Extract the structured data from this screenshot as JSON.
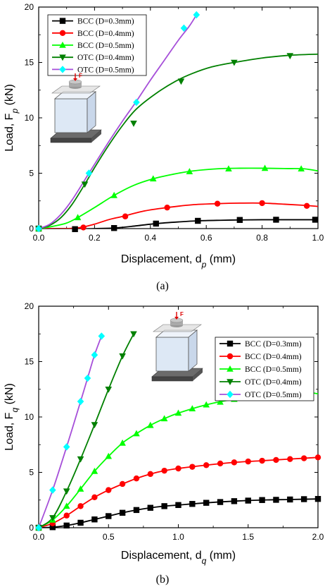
{
  "chart_data": [
    {
      "type": "line",
      "caption": "(a)",
      "xlabel": "Displacement, d",
      "xlabel_sub": "p",
      "xlabel_unit": " (mm)",
      "ylabel": "Load, F",
      "ylabel_sub": "p",
      "ylabel_unit": " (kN)",
      "xlim": [
        0,
        1.0
      ],
      "ylim": [
        0,
        20
      ],
      "xticks": [
        "0.0",
        "0.2",
        "0.4",
        "0.6",
        "0.8",
        "1.0"
      ],
      "yticks": [
        "0",
        "5",
        "10",
        "15",
        "20"
      ],
      "legend_position": "top-left",
      "inset_label": "F",
      "series": [
        {
          "name": "BCC (D=0.3mm)",
          "color": "#000000",
          "marker": "square",
          "x": [
            0,
            0.1,
            0.13,
            0.2,
            0.27,
            0.35,
            0.42,
            0.5,
            0.57,
            0.65,
            0.72,
            0.8,
            0.9,
            1.0
          ],
          "y": [
            0,
            0,
            -0.05,
            0,
            0.05,
            0.25,
            0.45,
            0.6,
            0.7,
            0.75,
            0.78,
            0.8,
            0.8,
            0.8
          ],
          "markers_x": [
            0.0,
            0.13,
            0.27,
            0.42,
            0.57,
            0.72,
            0.85,
            0.99
          ],
          "markers_y": [
            0,
            -0.05,
            0.05,
            0.45,
            0.7,
            0.78,
            0.8,
            0.8
          ]
        },
        {
          "name": "BCC (D=0.4mm)",
          "color": "#ff0000",
          "marker": "circle",
          "x": [
            0,
            0.1,
            0.15,
            0.2,
            0.25,
            0.3,
            0.38,
            0.46,
            0.55,
            0.64,
            0.72,
            0.8,
            0.88,
            0.95,
            1.0
          ],
          "y": [
            0,
            0,
            0.1,
            0.4,
            0.8,
            1.1,
            1.6,
            1.9,
            2.15,
            2.25,
            2.3,
            2.3,
            2.2,
            2.1,
            2.0
          ],
          "markers_x": [
            0.0,
            0.16,
            0.31,
            0.46,
            0.64,
            0.8,
            0.96
          ],
          "markers_y": [
            0,
            0.1,
            1.1,
            1.9,
            2.25,
            2.3,
            2.05
          ]
        },
        {
          "name": "BCC (D=0.5mm)",
          "color": "#00ff00",
          "marker": "triangle",
          "x": [
            0,
            0.05,
            0.1,
            0.14,
            0.2,
            0.27,
            0.34,
            0.41,
            0.48,
            0.55,
            0.64,
            0.72,
            0.8,
            0.88,
            0.95,
            1.0
          ],
          "y": [
            0,
            0.2,
            0.5,
            1.0,
            1.9,
            3.0,
            3.9,
            4.5,
            4.9,
            5.2,
            5.4,
            5.45,
            5.45,
            5.42,
            5.4,
            5.2
          ],
          "markers_x": [
            0.0,
            0.14,
            0.27,
            0.41,
            0.54,
            0.68,
            0.81,
            0.94
          ],
          "markers_y": [
            0,
            1.0,
            3.0,
            4.5,
            5.15,
            5.4,
            5.45,
            5.4
          ]
        },
        {
          "name": "OTC (D=0.4mm)",
          "color": "#008000",
          "marker": "triangle-down",
          "x": [
            0,
            0.04,
            0.08,
            0.12,
            0.165,
            0.2,
            0.25,
            0.3,
            0.35,
            0.42,
            0.49,
            0.55,
            0.62,
            0.7,
            0.8,
            0.9,
            1.0
          ],
          "y": [
            0,
            0.3,
            1.0,
            2.2,
            4.0,
            5.5,
            7.5,
            9.3,
            10.8,
            12.2,
            13.3,
            14.0,
            14.6,
            15.0,
            15.4,
            15.65,
            15.75
          ],
          "markers_x": [
            0.0,
            0.165,
            0.34,
            0.51,
            0.7,
            0.9
          ],
          "markers_y": [
            0,
            4.0,
            9.5,
            13.3,
            15.0,
            15.6
          ]
        },
        {
          "name": "OTC (D=0.5mm)",
          "color": "#00ffff",
          "line_color": "#a64fd9",
          "marker": "diamond",
          "x": [
            0,
            0.04,
            0.08,
            0.12,
            0.18,
            0.25,
            0.3,
            0.35,
            0.4,
            0.45,
            0.5,
            0.54,
            0.565
          ],
          "y": [
            0,
            0.4,
            1.3,
            2.6,
            5.0,
            7.8,
            9.7,
            11.5,
            13.4,
            15.2,
            17.0,
            18.3,
            19.3
          ],
          "markers_x": [
            0.0,
            0.18,
            0.35,
            0.52,
            0.565
          ],
          "markers_y": [
            0,
            5.0,
            11.4,
            18.1,
            19.3
          ]
        }
      ]
    },
    {
      "type": "line",
      "caption": "(b)",
      "xlabel": "Displacement, d",
      "xlabel_sub": "q",
      "xlabel_unit": " (mm)",
      "ylabel": "Load, F",
      "ylabel_sub": "q",
      "ylabel_unit": " (kN)",
      "xlim": [
        0,
        2.0
      ],
      "ylim": [
        0,
        20
      ],
      "xticks": [
        "0.0",
        "0.5",
        "1.0",
        "1.5",
        "2.0"
      ],
      "yticks": [
        "0",
        "5",
        "10",
        "15",
        "20"
      ],
      "legend_position": "top-right",
      "inset_label": "F",
      "series": [
        {
          "name": "BCC (D=0.3mm)",
          "color": "#000000",
          "marker": "square",
          "x": [
            0,
            0.1,
            0.2,
            0.3,
            0.4,
            0.5,
            0.6,
            0.7,
            0.8,
            0.9,
            1.0,
            1.2,
            1.4,
            1.6,
            1.8,
            2.0
          ],
          "y": [
            0,
            0.05,
            0.2,
            0.45,
            0.75,
            1.05,
            1.35,
            1.6,
            1.8,
            1.95,
            2.05,
            2.25,
            2.4,
            2.5,
            2.55,
            2.6
          ],
          "markers_x": [
            0.0,
            0.1,
            0.2,
            0.3,
            0.4,
            0.5,
            0.6,
            0.7,
            0.8,
            0.9,
            1.0,
            1.1,
            1.2,
            1.3,
            1.4,
            1.5,
            1.6,
            1.7,
            1.8,
            1.9,
            2.0
          ],
          "markers_y": [
            0,
            0.05,
            0.2,
            0.45,
            0.75,
            1.05,
            1.35,
            1.6,
            1.8,
            1.95,
            2.05,
            2.15,
            2.25,
            2.32,
            2.4,
            2.45,
            2.5,
            2.52,
            2.55,
            2.58,
            2.6
          ]
        },
        {
          "name": "BCC (D=0.4mm)",
          "color": "#ff0000",
          "marker": "circle",
          "x": [
            0,
            0.1,
            0.2,
            0.3,
            0.4,
            0.5,
            0.6,
            0.7,
            0.8,
            0.9,
            1.0,
            1.2,
            1.4,
            1.6,
            1.8,
            2.0
          ],
          "y": [
            0,
            0.4,
            1.1,
            1.95,
            2.75,
            3.4,
            3.95,
            4.45,
            4.85,
            5.15,
            5.35,
            5.65,
            5.9,
            6.05,
            6.2,
            6.35
          ],
          "markers_x": [
            0.0,
            0.1,
            0.2,
            0.3,
            0.4,
            0.5,
            0.6,
            0.7,
            0.8,
            0.9,
            1.0,
            1.1,
            1.2,
            1.3,
            1.4,
            1.5,
            1.6,
            1.7,
            1.8,
            1.9,
            2.0
          ],
          "markers_y": [
            0,
            0.4,
            1.1,
            1.95,
            2.75,
            3.4,
            3.95,
            4.45,
            4.85,
            5.15,
            5.35,
            5.5,
            5.65,
            5.8,
            5.9,
            5.98,
            6.05,
            6.12,
            6.2,
            6.27,
            6.35
          ]
        },
        {
          "name": "BCC (D=0.5mm)",
          "color": "#00ff00",
          "marker": "triangle",
          "x": [
            0,
            0.1,
            0.2,
            0.3,
            0.4,
            0.5,
            0.6,
            0.7,
            0.8,
            0.9,
            1.0,
            1.2,
            1.4,
            1.6,
            1.8,
            1.9,
            2.0
          ],
          "y": [
            0,
            0.7,
            1.95,
            3.5,
            5.1,
            6.45,
            7.65,
            8.5,
            9.25,
            9.85,
            10.35,
            11.1,
            11.6,
            11.9,
            12.15,
            12.25,
            12.1
          ],
          "markers_x": [
            0.0,
            0.1,
            0.2,
            0.3,
            0.4,
            0.5,
            0.6,
            0.7,
            0.8,
            0.9,
            1.0,
            1.1,
            1.2,
            1.3,
            1.4,
            1.5,
            1.6,
            1.7,
            1.8,
            1.9
          ],
          "markers_y": [
            0,
            0.7,
            1.95,
            3.5,
            5.1,
            6.45,
            7.65,
            8.5,
            9.25,
            9.85,
            10.35,
            10.75,
            11.1,
            11.35,
            11.6,
            11.75,
            11.9,
            12.05,
            12.15,
            12.25
          ]
        },
        {
          "name": "OTC (D=0.4mm)",
          "color": "#008000",
          "marker": "triangle-down",
          "x": [
            0,
            0.1,
            0.2,
            0.3,
            0.4,
            0.5,
            0.6,
            0.68
          ],
          "y": [
            0,
            0.9,
            3.3,
            6.2,
            9.3,
            12.5,
            15.5,
            17.5
          ],
          "markers_x": [
            0.0,
            0.1,
            0.2,
            0.3,
            0.4,
            0.5,
            0.6,
            0.68
          ],
          "markers_y": [
            0,
            0.9,
            3.3,
            6.2,
            9.3,
            12.5,
            15.5,
            17.5
          ]
        },
        {
          "name": "OTC (D=0.5mm)",
          "color": "#00ffff",
          "line_color": "#a64fd9",
          "marker": "diamond",
          "x": [
            0,
            0.1,
            0.2,
            0.3,
            0.35,
            0.4,
            0.45
          ],
          "y": [
            0,
            3.4,
            7.3,
            11.4,
            13.5,
            15.6,
            17.3
          ],
          "markers_x": [
            0.0,
            0.1,
            0.2,
            0.3,
            0.35,
            0.4,
            0.45
          ],
          "markers_y": [
            0,
            3.4,
            7.3,
            11.4,
            13.5,
            15.6,
            17.3
          ]
        }
      ]
    }
  ]
}
